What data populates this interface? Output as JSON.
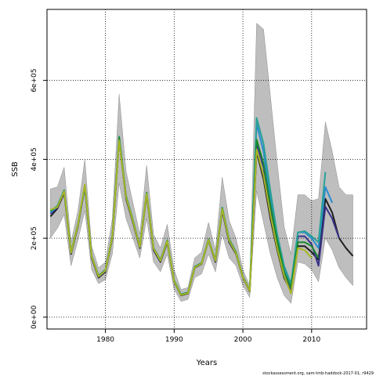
{
  "chart_data": {
    "type": "line",
    "title": "",
    "xlabel": "Years",
    "ylabel": "SSB",
    "xlim": [
      1971.5,
      2018
    ],
    "ylim": [
      -30000,
      780000
    ],
    "x_ticks": [
      1980,
      1990,
      2000,
      2010
    ],
    "x_tick_labels": [
      "1980",
      "1990",
      "2000",
      "2010"
    ],
    "y_ticks": [
      0,
      200000,
      400000,
      600000
    ],
    "y_tick_labels": [
      "0e+00",
      "2e+05",
      "4e+05",
      "6e+05"
    ],
    "grid": true,
    "band": {
      "name": "confidence interval",
      "color": "#bebebe",
      "x": [
        1972,
        1973,
        1974,
        1975,
        1976,
        1977,
        1978,
        1979,
        1980,
        1981,
        1982,
        1983,
        1984,
        1985,
        1986,
        1987,
        1988,
        1989,
        1990,
        1991,
        1992,
        1993,
        1994,
        1995,
        1996,
        1997,
        1998,
        1999,
        2000,
        2001,
        2002,
        2003,
        2004,
        2005,
        2006,
        2007,
        2008,
        2009,
        2010,
        2011,
        2012,
        2013,
        2014,
        2015,
        2016
      ],
      "upper": [
        325000,
        330000,
        380000,
        190000,
        270000,
        400000,
        180000,
        125000,
        140000,
        250000,
        565000,
        370000,
        290000,
        210000,
        385000,
        210000,
        175000,
        235000,
        120000,
        70000,
        75000,
        150000,
        165000,
        240000,
        170000,
        355000,
        245000,
        200000,
        120000,
        80000,
        745000,
        730000,
        560000,
        390000,
        230000,
        160000,
        310000,
        310000,
        295000,
        300000,
        495000,
        420000,
        330000,
        310000,
        310000
      ],
      "lower": [
        200000,
        225000,
        260000,
        130000,
        195000,
        270000,
        120000,
        85000,
        95000,
        160000,
        340000,
        250000,
        200000,
        150000,
        250000,
        140000,
        115000,
        160000,
        70000,
        40000,
        45000,
        100000,
        110000,
        160000,
        115000,
        210000,
        150000,
        130000,
        80000,
        50000,
        320000,
        240000,
        160000,
        100000,
        55000,
        35000,
        140000,
        135000,
        120000,
        90000,
        200000,
        170000,
        125000,
        100000,
        80000
      ]
    },
    "series": [
      {
        "color": "#1f1f1f",
        "x": [
          1972,
          1973,
          1974,
          1975,
          1976,
          1977,
          1978,
          1979,
          1980,
          1981,
          1982,
          1983,
          1984,
          1985,
          1986,
          1987,
          1988,
          1989,
          1990,
          1991,
          1992,
          1993,
          1994,
          1995,
          1996,
          1997,
          1998,
          1999,
          2000,
          2001,
          2002,
          2003,
          2004,
          2005,
          2006,
          2007,
          2008,
          2009,
          2010,
          2011,
          2012,
          2013,
          2014,
          2015,
          2016
        ],
        "values": [
          255000,
          275000,
          315000,
          160000,
          230000,
          330000,
          150000,
          100000,
          115000,
          200000,
          450000,
          300000,
          240000,
          175000,
          310000,
          170000,
          140000,
          190000,
          90000,
          55000,
          60000,
          125000,
          135000,
          195000,
          140000,
          270000,
          190000,
          160000,
          100000,
          65000,
          420000,
          350000,
          250000,
          170000,
          100000,
          65000,
          180000,
          180000,
          165000,
          145000,
          300000,
          265000,
          200000,
          175000,
          155000
        ]
      },
      {
        "color": "#39338a",
        "x": [
          1972,
          1973,
          1974,
          1975,
          1976,
          1977,
          1978,
          1979,
          1980,
          1981,
          1982,
          1983,
          1984,
          1985,
          1986,
          1987,
          1988,
          1989,
          1990,
          1991,
          1992,
          1993,
          1994,
          1995,
          1996,
          1997,
          1998,
          1999,
          2000,
          2001,
          2002,
          2003,
          2004,
          2005,
          2006,
          2007,
          2008,
          2009,
          2010,
          2011,
          2012,
          2013,
          2014
        ],
        "values": [
          262000,
          278000,
          318000,
          162000,
          232000,
          332000,
          152000,
          102000,
          117000,
          202000,
          452000,
          302000,
          242000,
          177000,
          312000,
          172000,
          142000,
          192000,
          91000,
          56000,
          61000,
          126000,
          136000,
          196000,
          142000,
          272000,
          192000,
          162000,
          101000,
          66000,
          440000,
          380000,
          270000,
          180000,
          110000,
          70000,
          205000,
          205000,
          185000,
          130000,
          280000,
          250000,
          200000
        ]
      },
      {
        "color": "#2c8bd1",
        "x": [
          1972,
          1973,
          1974,
          1975,
          1976,
          1977,
          1978,
          1979,
          1980,
          1981,
          1982,
          1983,
          1984,
          1985,
          1986,
          1987,
          1988,
          1989,
          1990,
          1991,
          1992,
          1993,
          1994,
          1995,
          1996,
          1997,
          1998,
          1999,
          2000,
          2001,
          2002,
          2003,
          2004,
          2005,
          2006,
          2007,
          2008,
          2009,
          2010,
          2011,
          2012,
          2013
        ],
        "values": [
          265000,
          280000,
          320000,
          163000,
          233000,
          333000,
          153000,
          103000,
          118000,
          203000,
          455000,
          305000,
          244000,
          178000,
          314000,
          174000,
          143000,
          193000,
          92000,
          57000,
          62000,
          127000,
          137000,
          197000,
          143000,
          275000,
          195000,
          163000,
          102000,
          67000,
          490000,
          420000,
          300000,
          200000,
          120000,
          80000,
          215000,
          215000,
          200000,
          175000,
          330000,
          290000
        ]
      },
      {
        "color": "#2aa198",
        "x": [
          1972,
          1973,
          1974,
          1975,
          1976,
          1977,
          1978,
          1979,
          1980,
          1981,
          1982,
          1983,
          1984,
          1985,
          1986,
          1987,
          1988,
          1989,
          1990,
          1991,
          1992,
          1993,
          1994,
          1995,
          1996,
          1997,
          1998,
          1999,
          2000,
          2001,
          2002,
          2003,
          2004,
          2005,
          2006,
          2007,
          2008,
          2009,
          2010,
          2011,
          2012
        ],
        "values": [
          268000,
          282000,
          322000,
          165000,
          235000,
          335000,
          155000,
          105000,
          120000,
          205000,
          458000,
          308000,
          246000,
          180000,
          316000,
          176000,
          145000,
          195000,
          93000,
          58000,
          63000,
          128000,
          138000,
          198000,
          145000,
          278000,
          198000,
          165000,
          103000,
          68000,
          505000,
          440000,
          320000,
          210000,
          130000,
          85000,
          215000,
          218000,
          205000,
          190000,
          368000
        ]
      },
      {
        "color": "#178a2e",
        "x": [
          1972,
          1973,
          1974,
          1975,
          1976,
          1977,
          1978,
          1979,
          1980,
          1981,
          1982,
          1983,
          1984,
          1985,
          1986,
          1987,
          1988,
          1989,
          1990,
          1991,
          1992,
          1993,
          1994,
          1995,
          1996,
          1997,
          1998,
          1999,
          2000,
          2001,
          2002,
          2003,
          2004,
          2005,
          2006,
          2007,
          2008,
          2009,
          2010,
          2011
        ],
        "values": [
          270000,
          280000,
          320000,
          164000,
          234000,
          334000,
          154000,
          104000,
          119000,
          204000,
          456000,
          306000,
          245000,
          179000,
          315000,
          175000,
          144000,
          194000,
          92000,
          57000,
          62000,
          127000,
          137000,
          197000,
          144000,
          276000,
          196000,
          164000,
          102000,
          67000,
          450000,
          390000,
          285000,
          195000,
          115000,
          75000,
          190000,
          190000,
          180000,
          150000
        ]
      },
      {
        "color": "#a9b526",
        "x": [
          1972,
          1973,
          1974,
          1975,
          1976,
          1977,
          1978,
          1979,
          1980,
          1981,
          1982,
          1983,
          1984,
          1985,
          1986,
          1987,
          1988,
          1989,
          1990,
          1991,
          1992,
          1993,
          1994,
          1995,
          1996,
          1997,
          1998,
          1999,
          2000,
          2001,
          2002,
          2003,
          2004,
          2005,
          2006,
          2007,
          2008,
          2009,
          2010
        ],
        "values": [
          272000,
          279000,
          319000,
          163000,
          233000,
          336000,
          153000,
          103000,
          118000,
          203000,
          448000,
          304000,
          243000,
          178000,
          313000,
          174000,
          143000,
          193000,
          91000,
          56000,
          61000,
          126000,
          136000,
          196000,
          143000,
          274000,
          194000,
          162000,
          101000,
          66000,
          425000,
          360000,
          260000,
          175000,
          105000,
          60000,
          175000,
          170000,
          150000
        ]
      }
    ]
  },
  "footer_text": "stockassessment.org, sam-tmb-haddock-2017-01, r9429"
}
